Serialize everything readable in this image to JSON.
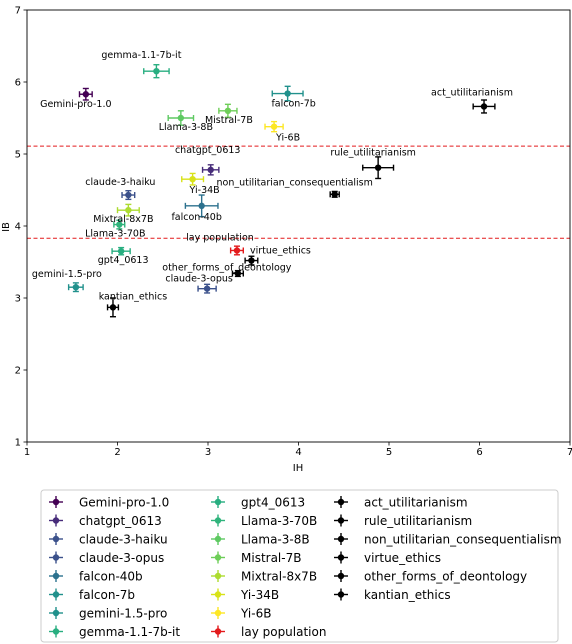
{
  "chart_data": {
    "type": "scatter",
    "title": "",
    "xlabel": "IH",
    "ylabel": "IB",
    "xlim": [
      1,
      7
    ],
    "ylim": [
      1,
      7
    ],
    "xticks": [
      "1",
      "2",
      "3",
      "4",
      "5",
      "6",
      "7"
    ],
    "yticks": [
      "1",
      "2",
      "3",
      "4",
      "5",
      "6",
      "7"
    ],
    "grid": false,
    "legend_placement": "bottom",
    "reference_lines": [
      {
        "axis": "y",
        "value": 5.11,
        "color": "#e31a1c",
        "style": "dashed"
      },
      {
        "axis": "y",
        "value": 3.83,
        "color": "#e31a1c",
        "style": "dashed"
      }
    ],
    "series": [
      {
        "name": "Gemini-pro-1.0",
        "x": 1.65,
        "y": 5.83,
        "xerr": 0.07,
        "yerr": 0.08,
        "color": "#440154"
      },
      {
        "name": "chatgpt_0613",
        "x": 3.03,
        "y": 4.78,
        "xerr": 0.09,
        "yerr": 0.07,
        "color": "#472c7a"
      },
      {
        "name": "claude-3-haiku",
        "x": 2.12,
        "y": 4.43,
        "xerr": 0.07,
        "yerr": 0.06,
        "color": "#3b518b"
      },
      {
        "name": "claude-3-opus",
        "x": 2.99,
        "y": 3.13,
        "xerr": 0.1,
        "yerr": 0.06,
        "color": "#3b518b"
      },
      {
        "name": "falcon-40b",
        "x": 2.93,
        "y": 4.28,
        "xerr": 0.18,
        "yerr": 0.15,
        "color": "#2c718e"
      },
      {
        "name": "falcon-7b",
        "x": 3.88,
        "y": 5.84,
        "xerr": 0.17,
        "yerr": 0.1,
        "color": "#21918c"
      },
      {
        "name": "gemini-1.5-pro",
        "x": 1.54,
        "y": 3.15,
        "xerr": 0.08,
        "yerr": 0.06,
        "color": "#21918c"
      },
      {
        "name": "gemma-1.1-7b-it",
        "x": 2.43,
        "y": 6.15,
        "xerr": 0.14,
        "yerr": 0.09,
        "color": "#28ae80"
      },
      {
        "name": "gpt4_0613",
        "x": 2.04,
        "y": 3.65,
        "xerr": 0.1,
        "yerr": 0.05,
        "color": "#28ae80"
      },
      {
        "name": "Llama-3-70B",
        "x": 2.02,
        "y": 4.02,
        "xerr": 0.06,
        "yerr": 0.06,
        "color": "#2fb47c"
      },
      {
        "name": "Llama-3-8B",
        "x": 2.7,
        "y": 5.5,
        "xerr": 0.14,
        "yerr": 0.1,
        "color": "#5ec962"
      },
      {
        "name": "Mistral-7B",
        "x": 3.22,
        "y": 5.6,
        "xerr": 0.1,
        "yerr": 0.09,
        "color": "#6ece58"
      },
      {
        "name": "Mixtral-8x7B",
        "x": 2.12,
        "y": 4.22,
        "xerr": 0.12,
        "yerr": 0.08,
        "color": "#addc30"
      },
      {
        "name": "Yi-34B",
        "x": 2.83,
        "y": 4.65,
        "xerr": 0.12,
        "yerr": 0.08,
        "color": "#d8e219"
      },
      {
        "name": "Yi-6B",
        "x": 3.73,
        "y": 5.38,
        "xerr": 0.1,
        "yerr": 0.07,
        "color": "#fde725"
      },
      {
        "name": "lay population",
        "x": 3.32,
        "y": 3.66,
        "xerr": 0.07,
        "yerr": 0.06,
        "color": "#e31a1c"
      },
      {
        "name": "act_utilitarianism",
        "x": 6.05,
        "y": 5.66,
        "xerr": 0.12,
        "yerr": 0.09,
        "color": "#000000"
      },
      {
        "name": "rule_utilitarianism",
        "x": 4.88,
        "y": 4.81,
        "xerr": 0.17,
        "yerr": 0.15,
        "color": "#000000"
      },
      {
        "name": "non_utilitarian_consequentialism",
        "x": 4.4,
        "y": 4.44,
        "xerr": 0.05,
        "yerr": 0.04,
        "color": "#000000"
      },
      {
        "name": "virtue_ethics",
        "x": 3.48,
        "y": 3.52,
        "xerr": 0.07,
        "yerr": 0.06,
        "color": "#000000"
      },
      {
        "name": "other_forms_of_deontology",
        "x": 3.33,
        "y": 3.34,
        "xerr": 0.06,
        "yerr": 0.04,
        "color": "#000000"
      },
      {
        "name": "kantian_ethics",
        "x": 1.95,
        "y": 2.87,
        "xerr": 0.06,
        "yerr": 0.13,
        "color": "#000000"
      }
    ]
  }
}
